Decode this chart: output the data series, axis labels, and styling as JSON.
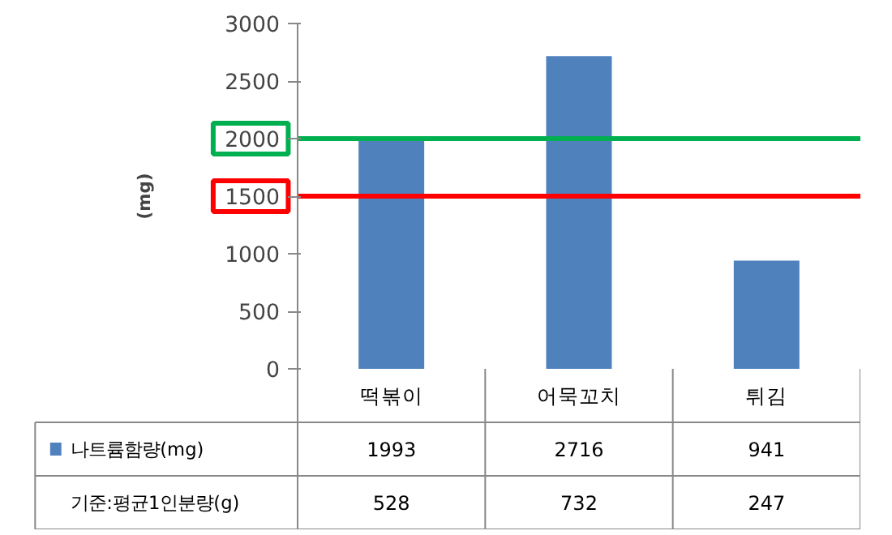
{
  "chart_data": {
    "type": "bar",
    "ylabel": "(mg)",
    "categories": [
      "떡볶이",
      "어묵꼬치",
      "튀김"
    ],
    "series": [
      {
        "name": "나트륨함량(mg)",
        "color": "#4f81bd",
        "values": [
          1993,
          2716,
          941
        ]
      }
    ],
    "annotations": [
      "기준:평균1인분량(g)",
      "528",
      "732",
      "247"
    ],
    "ylim": [
      0,
      3000
    ],
    "yticks": [
      0,
      500,
      1000,
      1500,
      2000,
      2500,
      3000
    ],
    "ref_lines": [
      {
        "axis": "y",
        "value": 2000,
        "color": "#00b050"
      },
      {
        "axis": "y",
        "value": 1500,
        "color": "#ff0000"
      }
    ],
    "data_labels": true,
    "grid": false,
    "legend": "bottom"
  }
}
